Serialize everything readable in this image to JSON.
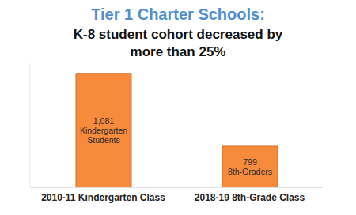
{
  "chart_data": {
    "type": "bar",
    "title": "Tier 1 Charter Schools:",
    "subtitle": "K-8 student cohort decreased by more than 25%",
    "categories": [
      "2010-11 Kindergarten Class",
      "2018-19 8th-Grade Class"
    ],
    "values": [
      1081,
      799
    ],
    "value_labels": [
      "1,081 Kindergarten Students",
      "799 8th-Graders"
    ],
    "data_labels": true,
    "color": "#F68B3C",
    "ylim": [
      640,
      1120
    ],
    "tick_labels": "x",
    "grid": false
  }
}
